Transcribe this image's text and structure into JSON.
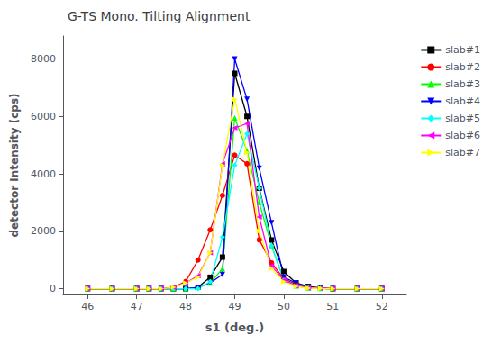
{
  "chart_data": {
    "type": "line",
    "title": "G-TS Mono. Tilting Alignment",
    "x_label": "s1 (deg.)",
    "y_label": "detector Intensity (cps)",
    "xlim": [
      45.5,
      52.5
    ],
    "ylim": [
      -200,
      8800
    ],
    "xticks": [
      46,
      47,
      48,
      49,
      50,
      51,
      52
    ],
    "yticks": [
      0,
      2000,
      4000,
      6000,
      8000
    ],
    "grid": false,
    "legend": "upper right",
    "x": [
      46,
      46.5,
      47,
      47.25,
      47.5,
      47.75,
      48.0,
      48.25,
      48.5,
      48.75,
      49.0,
      49.25,
      49.5,
      49.75,
      50.0,
      50.25,
      50.5,
      50.75,
      51,
      51.5,
      52
    ],
    "series": [
      {
        "name": "slab#1",
        "color": "#000000",
        "marker": "square",
        "values": [
          0,
          0,
          0,
          0,
          0,
          0,
          0,
          50,
          400,
          1100,
          7500,
          6000,
          3500,
          1700,
          600,
          200,
          80,
          30,
          0,
          0,
          0
        ]
      },
      {
        "name": "slab#2",
        "color": "#ff0000",
        "marker": "circle",
        "values": [
          0,
          0,
          0,
          0,
          0,
          50,
          250,
          1000,
          2050,
          3250,
          4650,
          4350,
          1700,
          900,
          350,
          150,
          50,
          20,
          0,
          0,
          0
        ]
      },
      {
        "name": "slab#3",
        "color": "#00ff00",
        "marker": "triangle-up",
        "values": [
          0,
          0,
          0,
          0,
          0,
          0,
          0,
          50,
          200,
          700,
          5950,
          4800,
          3000,
          1500,
          300,
          100,
          30,
          10,
          0,
          0,
          0
        ]
      },
      {
        "name": "slab#4",
        "color": "#0000ff",
        "marker": "triangle-down",
        "values": [
          0,
          0,
          0,
          0,
          0,
          0,
          0,
          50,
          200,
          500,
          8000,
          6600,
          4200,
          2300,
          400,
          200,
          50,
          10,
          0,
          0,
          0
        ]
      },
      {
        "name": "slab#5",
        "color": "#00ffff",
        "marker": "diamond",
        "values": [
          0,
          0,
          0,
          0,
          0,
          0,
          0,
          0,
          250,
          1800,
          4300,
          5400,
          3500,
          1500,
          300,
          100,
          30,
          10,
          0,
          0,
          0
        ]
      },
      {
        "name": "slab#6",
        "color": "#ff00ff",
        "marker": "triangle-left",
        "values": [
          0,
          0,
          0,
          0,
          0,
          50,
          200,
          450,
          1250,
          4350,
          5600,
          5750,
          2500,
          800,
          300,
          100,
          30,
          10,
          0,
          0,
          0
        ]
      },
      {
        "name": "slab#7",
        "color": "#ffff00",
        "marker": "triangle-right",
        "values": [
          0,
          0,
          0,
          0,
          0,
          50,
          200,
          400,
          1250,
          4300,
          6600,
          4750,
          2000,
          700,
          250,
          80,
          20,
          10,
          0,
          0,
          0
        ]
      }
    ]
  }
}
